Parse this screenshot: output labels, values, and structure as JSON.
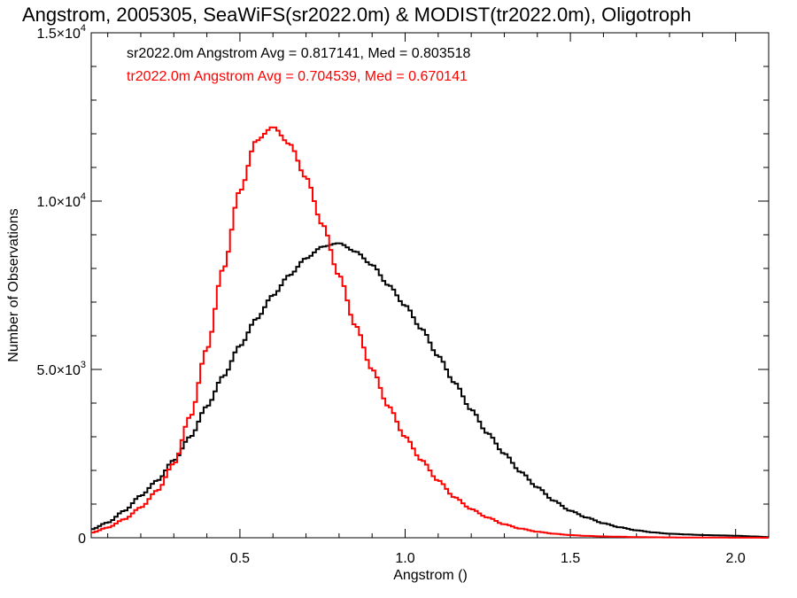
{
  "chart_data": {
    "type": "line",
    "title": "Angstrom, 2005305, SeaWiFS(sr2022.0m) & MODIST(tr2022.0m), Oligotroph",
    "xlabel": "Angstrom ()",
    "ylabel": "Number of Observations",
    "xlim": [
      0.05,
      2.1
    ],
    "ylim": [
      0,
      15000
    ],
    "x_ticks": [
      {
        "value": 0.5,
        "label": "0.5"
      },
      {
        "value": 1.0,
        "label": "1.0"
      },
      {
        "value": 1.5,
        "label": "1.5"
      },
      {
        "value": 2.0,
        "label": "2.0"
      }
    ],
    "y_ticks": [
      {
        "value": 0,
        "label": "0",
        "exp": ""
      },
      {
        "value": 5000,
        "label": "5.0×10",
        "exp": "3"
      },
      {
        "value": 10000,
        "label": "1.0×10",
        "exp": "4"
      },
      {
        "value": 15000,
        "label": "1.5×10",
        "exp": "4"
      }
    ],
    "grid": false,
    "style": "step",
    "annotations": [
      {
        "text": "sr2022.0m Angstrom Avg = 0.817141, Med = 0.803518",
        "color": "#000000"
      },
      {
        "text": "tr2022.0m Angstrom Avg = 0.704539, Med = 0.670141",
        "color": "#ff0000"
      }
    ],
    "x": [
      0.05,
      0.1,
      0.15,
      0.2,
      0.25,
      0.3,
      0.35,
      0.4,
      0.45,
      0.5,
      0.55,
      0.6,
      0.65,
      0.7,
      0.75,
      0.8,
      0.85,
      0.9,
      0.95,
      1.0,
      1.05,
      1.1,
      1.15,
      1.2,
      1.25,
      1.3,
      1.35,
      1.4,
      1.45,
      1.5,
      1.55,
      1.6,
      1.65,
      1.7,
      1.75,
      1.8,
      1.85,
      1.9,
      1.95,
      2.0,
      2.05,
      2.1
    ],
    "series": [
      {
        "color": "#000000",
        "values": [
          250,
          450,
          800,
          1250,
          1700,
          2300,
          3000,
          3900,
          4800,
          5700,
          6500,
          7200,
          7800,
          8300,
          8650,
          8750,
          8500,
          8100,
          7500,
          6900,
          6200,
          5400,
          4600,
          3800,
          3100,
          2500,
          1950,
          1500,
          1100,
          800,
          600,
          430,
          310,
          220,
          160,
          120,
          100,
          80,
          70,
          60,
          40,
          20
        ]
      },
      {
        "color": "#ff0000",
        "values": [
          150,
          300,
          550,
          900,
          1400,
          2200,
          3600,
          5600,
          8000,
          10300,
          11800,
          12200,
          11700,
          10700,
          9300,
          7800,
          6300,
          5000,
          3900,
          3000,
          2300,
          1700,
          1200,
          850,
          600,
          400,
          270,
          180,
          120,
          80,
          55,
          40,
          30,
          20,
          15,
          10,
          8,
          5,
          5,
          3,
          2,
          1
        ]
      }
    ]
  }
}
